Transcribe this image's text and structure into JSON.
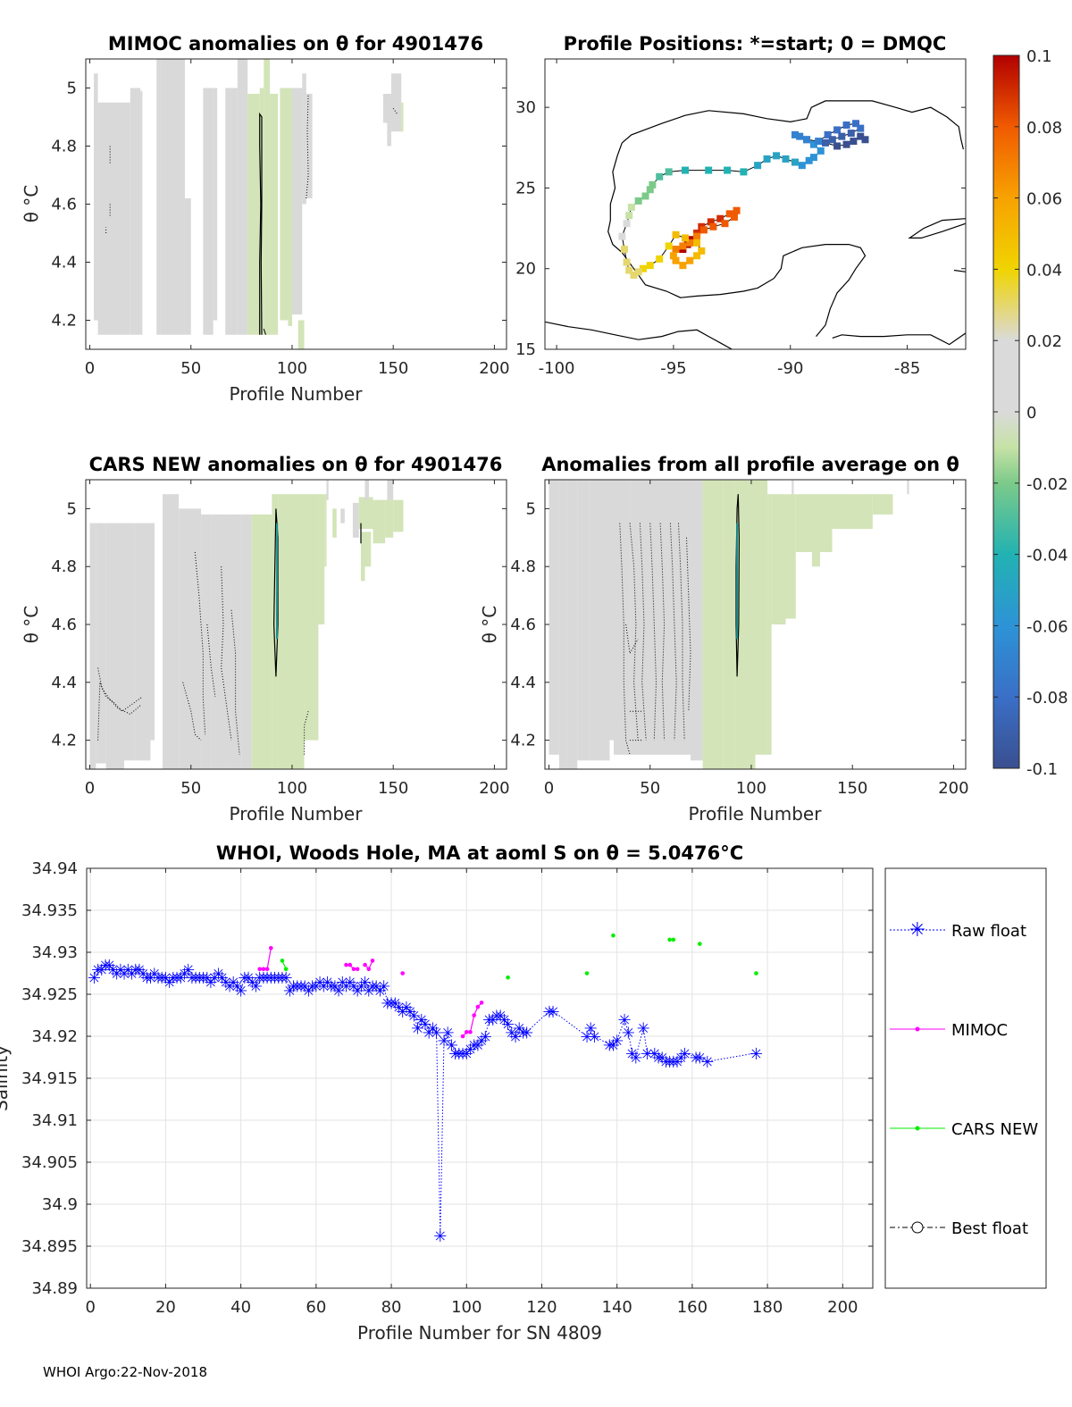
{
  "panels": {
    "mimoc": {
      "title": "MIMOC anomalies on θ  for 4901476",
      "xlabel": "Profile Number",
      "ylabel": "θ °C",
      "xticks": [
        "0",
        "50",
        "100",
        "150",
        "200"
      ],
      "yticks": [
        "4.2",
        "4.4",
        "4.6",
        "4.8",
        "5"
      ],
      "xlim": [
        -2,
        206
      ],
      "ylim": [
        4.1,
        5.1
      ]
    },
    "positions": {
      "title": "Profile Positions: *=start; 0 = DMQC",
      "xticks": [
        "-100",
        "-95",
        "-90",
        "-85"
      ],
      "yticks": [
        "15",
        "20",
        "25",
        "30"
      ],
      "xlim": [
        -100.5,
        -82.5
      ],
      "ylim": [
        15,
        33
      ]
    },
    "cars": {
      "title": "CARS NEW anomalies on θ for 4901476",
      "xlabel": "Profile Number",
      "ylabel": "θ °C",
      "xticks": [
        "0",
        "50",
        "100",
        "150",
        "200"
      ],
      "yticks": [
        "4.2",
        "4.4",
        "4.6",
        "4.8",
        "5"
      ],
      "xlim": [
        -2,
        206
      ],
      "ylim": [
        4.1,
        5.1
      ]
    },
    "allavg": {
      "title": "Anomalies from all profile average on θ",
      "xlabel": "Profile Number",
      "ylabel": "θ °C",
      "xticks": [
        "0",
        "50",
        "100",
        "150",
        "200"
      ],
      "yticks": [
        "4.2",
        "4.4",
        "4.6",
        "4.8",
        "5"
      ],
      "xlim": [
        -2,
        206
      ],
      "ylim": [
        4.1,
        5.1
      ]
    },
    "colorbar": {
      "ticks": [
        "0.1",
        "0.08",
        "0.06",
        "0.04",
        "0.02",
        "0",
        "-0.02",
        "-0.04",
        "-0.06",
        "-0.08",
        "-0.1"
      ]
    },
    "salinity": {
      "title": "WHOI, Woods Hole, MA at aoml S on θ = 5.0476°C",
      "xlabel": "Profile Number for SN 4809",
      "ylabel": "Salinity",
      "xticks": [
        "0",
        "20",
        "40",
        "60",
        "80",
        "100",
        "120",
        "140",
        "160",
        "180",
        "200"
      ],
      "yticks": [
        "34.89",
        "34.895",
        "34.9",
        "34.905",
        "34.91",
        "34.915",
        "34.92",
        "34.925",
        "34.93",
        "34.935",
        "34.94"
      ],
      "xlim": [
        -1,
        208
      ],
      "ylim": [
        34.89,
        34.94
      ]
    }
  },
  "legend": {
    "raw": "Raw float",
    "mimoc": "MIMOC",
    "cars": "CARS NEW",
    "best": "Best float"
  },
  "footer": "WHOI Argo:22-Nov-2018",
  "colors": {
    "raw": "#0000ff",
    "mimoc": "#ff00ff",
    "cars": "#00ee00",
    "anomaly_zero": "#d9d9d9",
    "anomaly_light_green": "#d3e4b8"
  },
  "chart_data": [
    {
      "type": "heatmap",
      "name": "MIMOC anomalies",
      "x_range": [
        0,
        150
      ],
      "y_range": [
        4.15,
        5.1
      ],
      "note_color_range": [
        -0.1,
        0.1
      ]
    },
    {
      "type": "scatter",
      "name": "Profile positions",
      "lon": [
        -94.6,
        -94.4,
        -94.2,
        -94.0,
        -93.8,
        -93.4,
        -93.0,
        -92.6,
        -92.3,
        -92.4,
        -92.8,
        -93.3,
        -93.7,
        -94.0,
        -94.3,
        -94.6,
        -94.9,
        -95.0,
        -94.9,
        -94.6,
        -94.3,
        -94.0,
        -93.8,
        -94.0,
        -94.5,
        -94.9,
        -95.2,
        -95.6,
        -96.0,
        -96.3,
        -96.5,
        -96.7,
        -96.9,
        -97.0,
        -97.1,
        -97.2,
        -97.0,
        -96.9,
        -96.8,
        -96.5,
        -96.2,
        -96.0,
        -95.9,
        -95.6,
        -95.2,
        -94.5,
        -93.5,
        -92.7,
        -92.0,
        -91.4,
        -91.0,
        -90.6,
        -90.2,
        -89.8,
        -89.5,
        -89.2,
        -89.0,
        -88.7,
        -89.0,
        -89.3,
        -89.6,
        -89.8,
        -89.3,
        -88.8,
        -88.4,
        -88.0,
        -87.6,
        -87.2,
        -87.0,
        -87.4,
        -87.8,
        -88.2,
        -88.5,
        -88.0,
        -87.6,
        -87.3,
        -87.0,
        -86.8
      ],
      "lat": [
        21.2,
        21.5,
        21.8,
        22.2,
        22.6,
        22.9,
        23.1,
        23.4,
        23.6,
        23.2,
        22.8,
        22.6,
        22.4,
        22.0,
        21.6,
        21.4,
        21.2,
        20.8,
        20.5,
        20.2,
        20.5,
        20.8,
        21.1,
        21.6,
        21.9,
        22.1,
        21.4,
        20.6,
        20.2,
        20.0,
        19.8,
        19.6,
        19.9,
        20.4,
        21.2,
        22.0,
        22.8,
        23.3,
        23.8,
        24.2,
        24.5,
        24.9,
        25.2,
        25.7,
        26.0,
        26.1,
        26.1,
        26.1,
        26.0,
        26.4,
        26.8,
        27.0,
        26.8,
        26.6,
        26.4,
        26.7,
        26.9,
        27.3,
        27.7,
        28.0,
        28.2,
        28.3,
        28.0,
        27.9,
        28.3,
        28.6,
        28.9,
        29.0,
        28.7,
        28.4,
        28.2,
        28.0,
        27.8,
        27.6,
        27.7,
        27.9,
        28.2,
        28.0
      ],
      "color_value": [
        0.1,
        0.1,
        0.1,
        0.09,
        0.09,
        0.09,
        0.09,
        0.08,
        0.08,
        0.08,
        0.08,
        0.08,
        0.08,
        0.07,
        0.07,
        0.07,
        0.07,
        0.06,
        0.06,
        0.06,
        0.06,
        0.05,
        0.05,
        0.05,
        0.05,
        0.05,
        0.04,
        0.04,
        0.04,
        0.04,
        0.03,
        0.03,
        0.03,
        0.03,
        0.03,
        0.02,
        0.02,
        -0.01,
        -0.01,
        -0.02,
        -0.02,
        -0.02,
        -0.02,
        -0.03,
        -0.03,
        -0.04,
        -0.04,
        -0.04,
        -0.04,
        -0.05,
        -0.05,
        -0.05,
        -0.05,
        -0.05,
        -0.06,
        -0.06,
        -0.06,
        -0.06,
        -0.06,
        -0.07,
        -0.07,
        -0.07,
        -0.07,
        -0.07,
        -0.08,
        -0.08,
        -0.08,
        -0.08,
        -0.08,
        -0.09,
        -0.09,
        -0.09,
        -0.09,
        -0.1,
        -0.1,
        -0.1,
        -0.1,
        -0.1
      ]
    },
    {
      "type": "heatmap",
      "name": "CARS NEW anomalies",
      "x_range": [
        0,
        150
      ],
      "y_range": [
        4.1,
        5.1
      ]
    },
    {
      "type": "heatmap",
      "name": "Anomalies from all profile average",
      "x_range": [
        0,
        180
      ],
      "y_range": [
        4.1,
        5.1
      ]
    },
    {
      "type": "line",
      "name": "Salinity on theta",
      "series": [
        {
          "name": "Raw float",
          "x": [
            1,
            2,
            3,
            4,
            5,
            6,
            7,
            8,
            9,
            10,
            11,
            12,
            13,
            14,
            15,
            16,
            17,
            18,
            19,
            20,
            21,
            22,
            23,
            24,
            25,
            26,
            27,
            28,
            29,
            30,
            31,
            32,
            33,
            34,
            35,
            36,
            37,
            38,
            39,
            40,
            41,
            42,
            43,
            44,
            45,
            46,
            47,
            48,
            49,
            50,
            51,
            52,
            53,
            54,
            55,
            56,
            57,
            58,
            59,
            60,
            61,
            62,
            63,
            64,
            65,
            66,
            67,
            68,
            69,
            70,
            71,
            72,
            73,
            74,
            75,
            76,
            77,
            78,
            79,
            80,
            81,
            82,
            83,
            84,
            85,
            86,
            87,
            88,
            89,
            90,
            91,
            92,
            93,
            94,
            95,
            96,
            97,
            98,
            99,
            100,
            101,
            102,
            103,
            104,
            105,
            106,
            107,
            108,
            109,
            110,
            111,
            112,
            113,
            114,
            115,
            116,
            122,
            123,
            132,
            133,
            134,
            138,
            139,
            140,
            142,
            143,
            144,
            145,
            147,
            148,
            150,
            151,
            152,
            153,
            154,
            155,
            156,
            157,
            158,
            161,
            162,
            164,
            177
          ],
          "y": [
            34.927,
            34.928,
            34.928,
            34.9285,
            34.9285,
            34.928,
            34.9275,
            34.928,
            34.9275,
            34.928,
            34.9275,
            34.928,
            34.928,
            34.9275,
            34.927,
            34.927,
            34.9275,
            34.927,
            34.927,
            34.927,
            34.9265,
            34.927,
            34.927,
            34.927,
            34.9275,
            34.928,
            34.927,
            34.927,
            34.927,
            34.927,
            34.927,
            34.9265,
            34.927,
            34.9275,
            34.927,
            34.9265,
            34.926,
            34.9265,
            34.926,
            34.9255,
            34.927,
            34.927,
            34.9265,
            34.926,
            34.927,
            34.927,
            34.927,
            34.927,
            34.927,
            34.927,
            34.927,
            34.927,
            34.9255,
            34.926,
            34.926,
            34.926,
            34.926,
            34.9255,
            34.926,
            34.926,
            34.9265,
            34.926,
            34.9265,
            34.926,
            34.926,
            34.9255,
            34.9265,
            34.926,
            34.9265,
            34.926,
            34.9255,
            34.926,
            34.9265,
            34.9255,
            34.926,
            34.926,
            34.9255,
            34.926,
            34.924,
            34.924,
            34.924,
            34.9235,
            34.923,
            34.9235,
            34.923,
            34.9225,
            34.921,
            34.922,
            34.9215,
            34.9205,
            34.921,
            34.9205,
            34.8963,
            34.9195,
            34.9205,
            34.919,
            34.918,
            34.918,
            34.918,
            34.918,
            34.9185,
            34.919,
            34.919,
            34.9195,
            34.92,
            34.922,
            34.922,
            34.9225,
            34.9225,
            34.922,
            34.9215,
            34.9205,
            34.92,
            34.921,
            34.9205,
            34.9205,
            34.923,
            34.923,
            34.92,
            34.921,
            34.92,
            34.919,
            34.919,
            34.9195,
            34.922,
            34.9205,
            34.918,
            34.9175,
            34.921,
            34.918,
            34.918,
            34.9175,
            34.9175,
            34.917,
            34.917,
            34.917,
            34.917,
            34.9175,
            34.918,
            34.9175,
            34.9175,
            34.917,
            34.918
          ]
        },
        {
          "name": "MIMOC",
          "x": [
            45,
            46,
            47,
            48,
            68,
            69,
            70,
            71,
            73,
            74,
            75,
            83,
            99,
            100,
            101,
            102,
            103,
            104
          ],
          "y": [
            34.928,
            34.928,
            34.928,
            34.9305,
            34.9285,
            34.9285,
            34.928,
            34.928,
            34.9285,
            34.928,
            34.929,
            34.9275,
            34.92,
            34.9205,
            34.9205,
            34.9225,
            34.9235,
            34.924
          ]
        },
        {
          "name": "CARS NEW",
          "x": [
            51,
            52,
            111,
            132,
            139,
            154,
            155,
            162,
            177
          ],
          "y": [
            34.929,
            34.928,
            34.927,
            34.9275,
            34.932,
            34.9315,
            34.9315,
            34.931,
            34.9275
          ]
        }
      ],
      "xlabel": "Profile Number for SN 4809",
      "ylabel": "Salinity",
      "xlim": [
        -1,
        208
      ],
      "ylim": [
        34.89,
        34.94
      ]
    }
  ]
}
